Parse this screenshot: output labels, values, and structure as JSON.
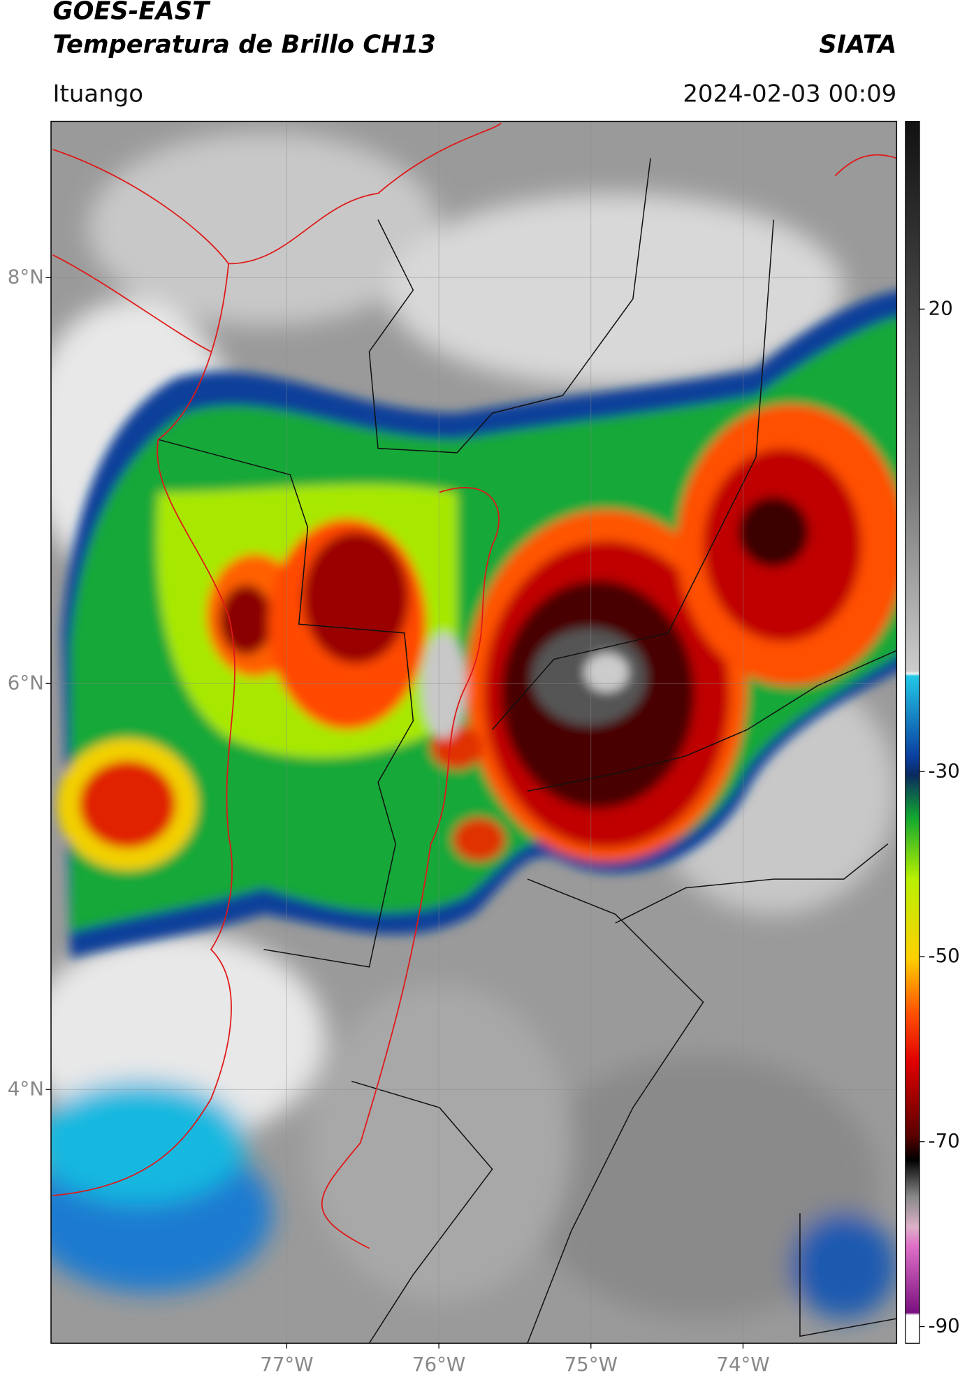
{
  "header": {
    "title_1": "GOES-EAST",
    "title_2": "Temperatura de Brillo CH13",
    "source": "SIATA",
    "location": "Ituango",
    "datetime": "2024-02-03 00:09"
  },
  "map": {
    "xlim": [
      -78.55,
      -72.99
    ],
    "ylim": [
      2.75,
      8.77
    ],
    "xticks": [
      {
        "value": -77,
        "label": "77°W"
      },
      {
        "value": -76,
        "label": "76°W"
      },
      {
        "value": -75,
        "label": "75°W"
      },
      {
        "value": -74,
        "label": "74°W"
      }
    ],
    "yticks": [
      {
        "value": 8,
        "label": "8°N"
      },
      {
        "value": 6,
        "label": "6°N"
      },
      {
        "value": 4,
        "label": "4°N"
      }
    ],
    "grid": true
  },
  "colorbar": {
    "lim": [
      -91.8,
      40.3
    ],
    "ticks": [
      20,
      -30,
      -50,
      -70,
      -90
    ]
  }
}
